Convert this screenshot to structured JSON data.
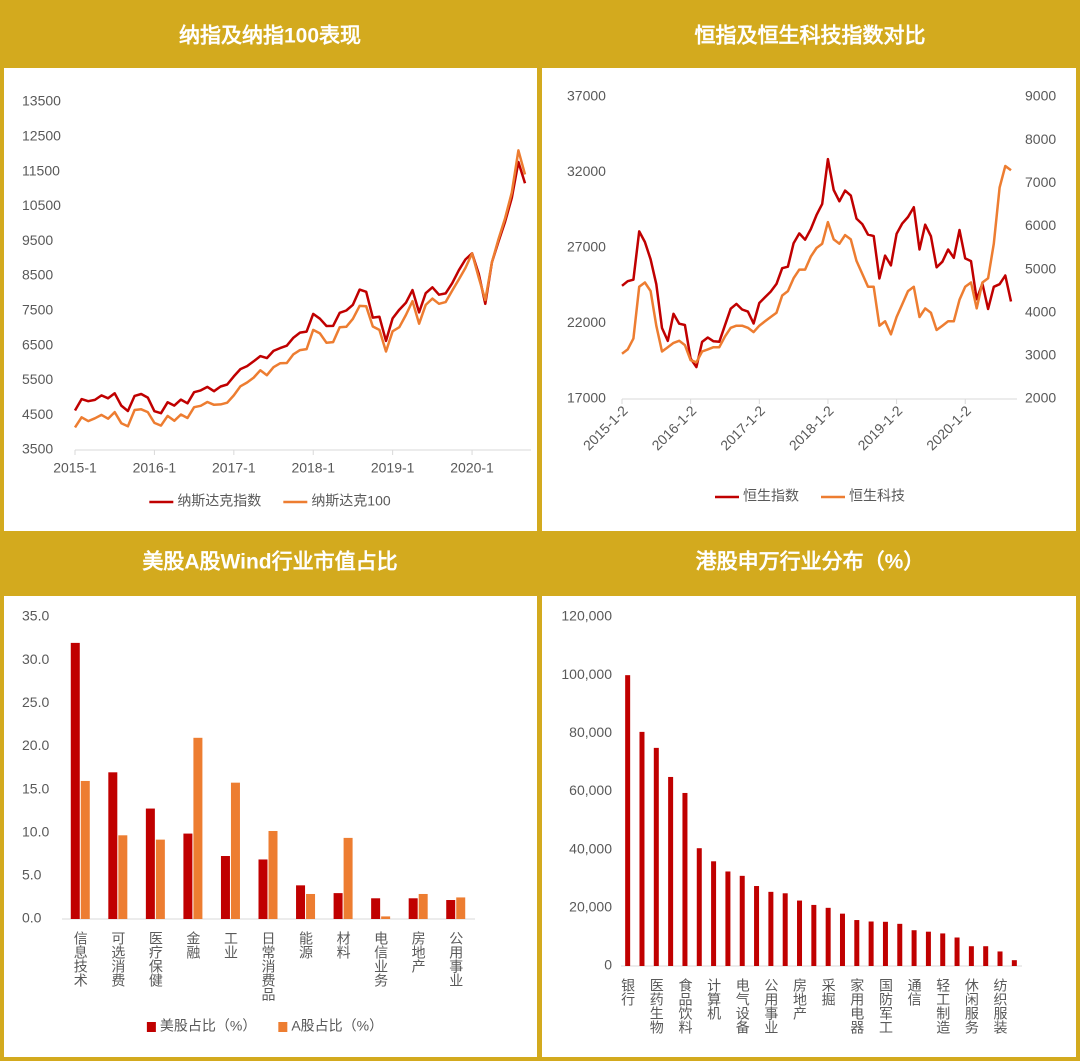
{
  "chart_data": [
    {
      "type": "line",
      "title": "纳指及纳指100表现",
      "x": [
        "2015-1",
        "2015-2",
        "2015-3",
        "2015-4",
        "2015-5",
        "2015-6",
        "2015-7",
        "2015-8",
        "2015-9",
        "2015-10",
        "2015-11",
        "2015-12",
        "2016-1",
        "2016-2",
        "2016-3",
        "2016-4",
        "2016-5",
        "2016-6",
        "2016-7",
        "2016-8",
        "2016-9",
        "2016-10",
        "2016-11",
        "2016-12",
        "2017-1",
        "2017-2",
        "2017-3",
        "2017-4",
        "2017-5",
        "2017-6",
        "2017-7",
        "2017-8",
        "2017-9",
        "2017-10",
        "2017-11",
        "2017-12",
        "2018-1",
        "2018-2",
        "2018-3",
        "2018-4",
        "2018-5",
        "2018-6",
        "2018-7",
        "2018-8",
        "2018-9",
        "2018-10",
        "2018-11",
        "2018-12",
        "2019-1",
        "2019-2",
        "2019-3",
        "2019-4",
        "2019-5",
        "2019-6",
        "2019-7",
        "2019-8",
        "2019-9",
        "2019-10",
        "2019-11",
        "2019-12",
        "2020-1",
        "2020-2",
        "2020-3",
        "2020-4",
        "2020-5",
        "2020-6",
        "2020-7",
        "2020-8",
        "2020-9"
      ],
      "series": [
        {
          "name": "纳斯达克指数",
          "color": "#c00000",
          "values": [
            4635,
            4964,
            4901,
            4941,
            5070,
            4987,
            5128,
            4777,
            4620,
            5054,
            5109,
            5007,
            4614,
            4558,
            4870,
            4775,
            4948,
            4843,
            5162,
            5213,
            5312,
            5189,
            5324,
            5383,
            5615,
            5825,
            5912,
            6048,
            6199,
            6140,
            6348,
            6429,
            6496,
            6728,
            6874,
            6903,
            7411,
            7273,
            7063,
            7066,
            7442,
            7510,
            7672,
            8110,
            8046,
            7306,
            7331,
            6635,
            7282,
            7533,
            7729,
            8095,
            7453,
            8006,
            8175,
            7963,
            7999,
            8292,
            8665,
            8973,
            9151,
            8567,
            7700,
            8890,
            9490,
            10059,
            10745,
            11775,
            11168
          ]
        },
        {
          "name": "纳斯达克100",
          "color": "#ed7d31",
          "values": [
            4150,
            4440,
            4330,
            4410,
            4510,
            4400,
            4590,
            4270,
            4180,
            4650,
            4670,
            4590,
            4280,
            4200,
            4480,
            4340,
            4520,
            4420,
            4730,
            4770,
            4880,
            4800,
            4810,
            4860,
            5070,
            5330,
            5440,
            5580,
            5790,
            5650,
            5880,
            5990,
            6000,
            6250,
            6370,
            6400,
            6950,
            6850,
            6580,
            6600,
            7030,
            7040,
            7270,
            7640,
            7630,
            7050,
            6950,
            6330,
            6910,
            7030,
            7380,
            7780,
            7130,
            7670,
            7850,
            7700,
            7750,
            8080,
            8400,
            8730,
            9150,
            8460,
            7810,
            8890,
            9560,
            10160,
            10900,
            12110,
            11420
          ]
        }
      ],
      "ylim": [
        3500,
        13500
      ],
      "yticks": [
        3500,
        4500,
        5500,
        6500,
        7500,
        8500,
        9500,
        10500,
        11500,
        12500,
        13500
      ],
      "xticks": [
        "2015-1",
        "2016-1",
        "2017-1",
        "2018-1",
        "2019-1",
        "2020-1"
      ],
      "legend": "bottom"
    },
    {
      "type": "line",
      "title": "恒指及恒生科技指数对比",
      "x": [
        "2015-1",
        "2015-2",
        "2015-3",
        "2015-4",
        "2015-5",
        "2015-6",
        "2015-7",
        "2015-8",
        "2015-9",
        "2015-10",
        "2015-11",
        "2015-12",
        "2016-1",
        "2016-2",
        "2016-3",
        "2016-4",
        "2016-5",
        "2016-6",
        "2016-7",
        "2016-8",
        "2016-9",
        "2016-10",
        "2016-11",
        "2016-12",
        "2017-1",
        "2017-2",
        "2017-3",
        "2017-4",
        "2017-5",
        "2017-6",
        "2017-7",
        "2017-8",
        "2017-9",
        "2017-10",
        "2017-11",
        "2017-12",
        "2018-1",
        "2018-2",
        "2018-3",
        "2018-4",
        "2018-5",
        "2018-6",
        "2018-7",
        "2018-8",
        "2018-9",
        "2018-10",
        "2018-11",
        "2018-12",
        "2019-1",
        "2019-2",
        "2019-3",
        "2019-4",
        "2019-5",
        "2019-6",
        "2019-7",
        "2019-8",
        "2019-9",
        "2019-10",
        "2019-11",
        "2019-12",
        "2020-1",
        "2020-2",
        "2020-3",
        "2020-4",
        "2020-5",
        "2020-6",
        "2020-7",
        "2020-8",
        "2020-9"
      ],
      "series": [
        {
          "name": "恒生指数",
          "color": "#c00000",
          "values": [
            24500,
            24800,
            24900,
            28100,
            27400,
            26250,
            24600,
            21700,
            20850,
            22640,
            21990,
            21900,
            19680,
            19110,
            20780,
            21070,
            20820,
            20790,
            21890,
            22980,
            23300,
            22930,
            22790,
            22000,
            23360,
            23740,
            24110,
            24620,
            25660,
            25760,
            27320,
            27970,
            27550,
            28250,
            29180,
            29920,
            32890,
            30840,
            30090,
            30800,
            30470,
            28950,
            28580,
            27890,
            27790,
            24980,
            26500,
            25850,
            27940,
            28630,
            29050,
            29700,
            26900,
            28540,
            27780,
            25720,
            26090,
            26900,
            26350,
            28190,
            26310,
            26130,
            23600,
            24640,
            22960,
            24430,
            24600,
            25180,
            23460
          ]
        },
        {
          "name": "恒生科技",
          "color": "#ed7d31",
          "axis": "y2",
          "values": [
            3050,
            3150,
            3400,
            4600,
            4700,
            4500,
            3700,
            3100,
            3200,
            3300,
            3350,
            3250,
            2900,
            2850,
            3100,
            3150,
            3200,
            3200,
            3450,
            3650,
            3700,
            3700,
            3650,
            3550,
            3700,
            3800,
            3900,
            4000,
            4400,
            4500,
            4800,
            5000,
            5000,
            5300,
            5500,
            5600,
            6100,
            5700,
            5600,
            5800,
            5700,
            5200,
            4900,
            4600,
            4600,
            3700,
            3800,
            3500,
            3900,
            4200,
            4500,
            4600,
            3900,
            4100,
            4000,
            3600,
            3700,
            3800,
            3800,
            4300,
            4600,
            4700,
            4100,
            4700,
            4800,
            5600,
            6900,
            7400,
            7300
          ]
        }
      ],
      "ylim": [
        17000,
        37000
      ],
      "yticks": [
        17000,
        22000,
        27000,
        32000,
        37000
      ],
      "y2lim": [
        2000,
        9000
      ],
      "y2ticks": [
        2000,
        3000,
        4000,
        5000,
        6000,
        7000,
        8000,
        9000
      ],
      "xticks": [
        {
          "value": "2015-1",
          "label": "2015-1-2"
        },
        {
          "value": "2016-1",
          "label": "2016-1-2"
        },
        {
          "value": "2017-1",
          "label": "2017-1-2"
        },
        {
          "value": "2018-1",
          "label": "2018-1-2"
        },
        {
          "value": "2019-1",
          "label": "2019-1-2"
        },
        {
          "value": "2020-1",
          "label": "2020-1-2"
        }
      ],
      "legend": "bottom"
    },
    {
      "type": "bar",
      "title": "美股A股Wind行业市值占比",
      "categories": [
        "信息技术",
        "可选消费",
        "医疗保健",
        "金融",
        "工业",
        "日常消费品",
        "能源",
        "材料",
        "电信业务",
        "房地产",
        "公用事业"
      ],
      "series": [
        {
          "name": "美股占比（%）",
          "color": "#c00000",
          "values": [
            32.0,
            17.0,
            12.8,
            9.9,
            7.3,
            6.9,
            3.9,
            3.0,
            2.4,
            2.4,
            2.2
          ]
        },
        {
          "name": "A股占比（%）",
          "color": "#ed7d31",
          "values": [
            16.0,
            9.7,
            9.2,
            21.0,
            15.8,
            10.2,
            2.9,
            9.4,
            0.3,
            2.9,
            2.5
          ]
        }
      ],
      "ylim": [
        0,
        35
      ],
      "yticks": [
        {
          "value": 0,
          "label": "0.0"
        },
        {
          "value": 5,
          "label": "5.0"
        },
        {
          "value": 10,
          "label": "10.0"
        },
        {
          "value": 15,
          "label": "15.0"
        },
        {
          "value": 20,
          "label": "20.0"
        },
        {
          "value": 25,
          "label": "25.0"
        },
        {
          "value": 30,
          "label": "30.0"
        },
        {
          "value": 35,
          "label": "35.0"
        }
      ],
      "legend": "bottom"
    },
    {
      "type": "bar",
      "title": "港股申万行业分布（%）",
      "categories": [
        "银行",
        null,
        "医药生物",
        null,
        "食品饮料",
        null,
        "计算机",
        null,
        "电气设备",
        null,
        "公用事业",
        null,
        "房地产",
        null,
        "采掘",
        null,
        "家用电器",
        null,
        "国防军工",
        null,
        "通信",
        null,
        "轻工制造",
        null,
        "休闲服务",
        null,
        "纺织服装",
        null
      ],
      "series": [
        {
          "color": "#c00000",
          "values": [
            100000,
            80500,
            75000,
            65000,
            59500,
            40500,
            36000,
            32500,
            31000,
            27500,
            25500,
            25000,
            22500,
            21000,
            20000,
            18000,
            15800,
            15300,
            15200,
            14500,
            12300,
            11800,
            11200,
            9800,
            6800,
            6800,
            5000,
            2000
          ]
        }
      ],
      "ylim": [
        0,
        120000
      ],
      "yticks": [
        0,
        {
          "value": 20000,
          "label": "20,000"
        },
        {
          "value": 40000,
          "label": "40,000"
        },
        {
          "value": 60000,
          "label": "60,000"
        },
        {
          "value": 80000,
          "label": "80,000"
        },
        {
          "value": 100000,
          "label": "100,000"
        },
        {
          "value": 120000,
          "label": "120,000"
        }
      ]
    }
  ]
}
